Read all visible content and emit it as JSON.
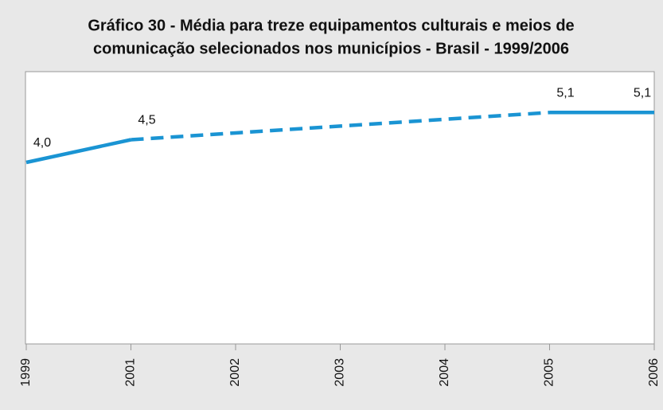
{
  "chart_data": {
    "type": "line",
    "title": [
      "Gráfico 30 - Média para treze equipamentos culturais e meios de",
      "comunicação selecionados nos municípios - Brasil - 1999/2006"
    ],
    "categories": [
      "1999",
      "2001",
      "2002",
      "2003",
      "2004",
      "2005",
      "2006"
    ],
    "series": [
      {
        "name": null,
        "color": "#1a94d3",
        "dashed": false,
        "values": [
          4.0,
          4.5,
          null,
          null,
          null,
          5.1,
          5.1
        ],
        "value_labels": [
          "4,0",
          "4,5",
          null,
          null,
          null,
          "5,1",
          "5,1"
        ]
      },
      {
        "name": null,
        "color": "#1a94d3",
        "dashed": true,
        "values": [
          null,
          4.5,
          4.65,
          4.8,
          4.95,
          5.1,
          null
        ]
      }
    ],
    "ylim": [
      0,
      6
    ]
  }
}
